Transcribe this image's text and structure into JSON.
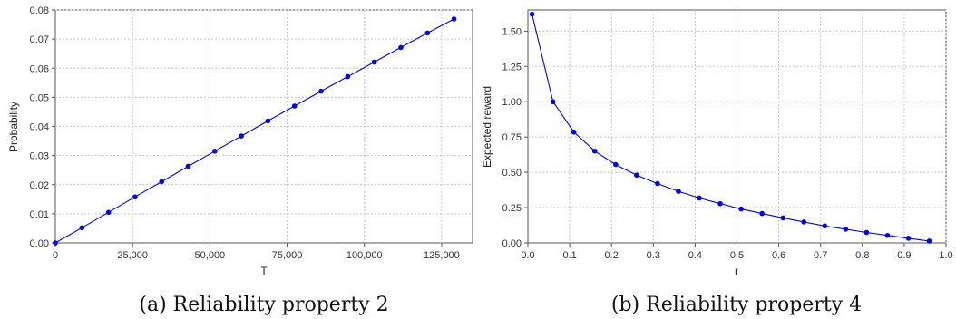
{
  "chart_data": [
    {
      "type": "line",
      "caption": "(a) Reliability property 2",
      "xlabel": "T",
      "ylabel": "Probability",
      "xlim": [
        0,
        135000
      ],
      "ylim": [
        0,
        0.08
      ],
      "xticks": [
        0,
        25000,
        50000,
        75000,
        100000,
        125000
      ],
      "xtick_labels": [
        "0",
        "25,000",
        "50,000",
        "75,000",
        "100,000",
        "125,000"
      ],
      "yticks": [
        0,
        0.01,
        0.02,
        0.03,
        0.04,
        0.05,
        0.06,
        0.07,
        0.08
      ],
      "ytick_labels": [
        "0.00",
        "0.01",
        "0.02",
        "0.03",
        "0.04",
        "0.05",
        "0.06",
        "0.07",
        "0.08"
      ],
      "grid": true,
      "color": "#0000ff",
      "series": [
        {
          "x": [
            0,
            8600,
            17200,
            25800,
            34400,
            43000,
            51600,
            60200,
            68800,
            77400,
            86000,
            94600,
            103200,
            111800,
            120400,
            129000
          ],
          "y": [
            0,
            0.0052,
            0.0105,
            0.0158,
            0.021,
            0.0263,
            0.0315,
            0.0367,
            0.0419,
            0.047,
            0.0521,
            0.0571,
            0.0621,
            0.0671,
            0.0721,
            0.0769
          ]
        }
      ]
    },
    {
      "type": "line",
      "caption": "(b) Reliability property 4",
      "xlabel": "r",
      "ylabel": "Expected reward",
      "xlim": [
        0,
        1.0
      ],
      "ylim": [
        0,
        1.65
      ],
      "xticks": [
        0,
        0.1,
        0.2,
        0.3,
        0.4,
        0.5,
        0.6,
        0.7,
        0.8,
        0.9,
        1.0
      ],
      "xtick_labels": [
        "0.0",
        "0.1",
        "0.2",
        "0.3",
        "0.4",
        "0.5",
        "0.6",
        "0.7",
        "0.8",
        "0.9",
        "1.0"
      ],
      "yticks": [
        0,
        0.25,
        0.5,
        0.75,
        1.0,
        1.25,
        1.5
      ],
      "ytick_labels": [
        "0.00",
        "0.25",
        "0.50",
        "0.75",
        "1.00",
        "1.25",
        "1.50"
      ],
      "grid": true,
      "color": "#0000ff",
      "series": [
        {
          "x": [
            0.01,
            0.06,
            0.11,
            0.16,
            0.21,
            0.26,
            0.31,
            0.36,
            0.41,
            0.46,
            0.51,
            0.56,
            0.61,
            0.66,
            0.71,
            0.76,
            0.81,
            0.86,
            0.91,
            0.96
          ],
          "y": [
            1.62,
            1.0,
            0.785,
            0.65,
            0.555,
            0.48,
            0.42,
            0.365,
            0.318,
            0.278,
            0.24,
            0.208,
            0.177,
            0.148,
            0.12,
            0.097,
            0.074,
            0.053,
            0.033,
            0.013
          ]
        }
      ]
    }
  ]
}
